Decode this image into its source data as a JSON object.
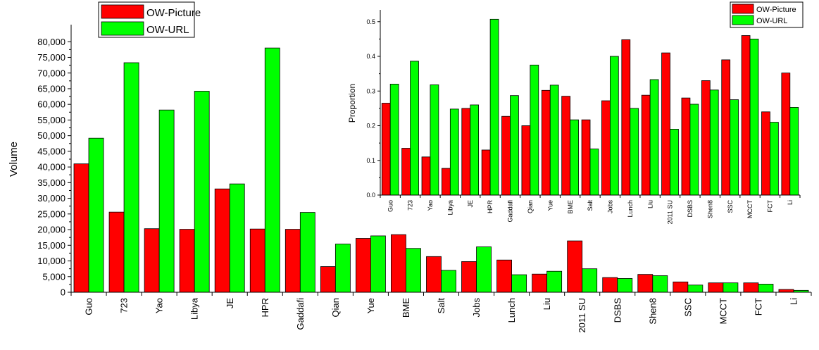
{
  "colors": {
    "picture": "#ff0000",
    "url": "#00ff00",
    "axis": "#000000"
  },
  "chart_data": [
    {
      "type": "bar",
      "title": "",
      "xlabel": "",
      "ylabel": "Volume",
      "ylim": [
        0,
        85000
      ],
      "yticks": [
        0,
        5000,
        10000,
        15000,
        20000,
        25000,
        30000,
        35000,
        40000,
        45000,
        50000,
        55000,
        60000,
        65000,
        70000,
        75000,
        80000
      ],
      "ytick_labels": [
        "0",
        "5,000",
        "10,000",
        "15,000",
        "20,000",
        "25,000",
        "30,000",
        "35,000",
        "40,000",
        "45,000",
        "50,000",
        "55,000",
        "60,000",
        "65,000",
        "70,000",
        "75,000",
        "80,000"
      ],
      "legend_position": "top-left",
      "grid": false,
      "categories": [
        "Guo",
        "723",
        "Yao",
        "Libya",
        "JE",
        "HPR",
        "Gaddafi",
        "Qian",
        "Yue",
        "BME",
        "Salt",
        "Jobs",
        "Lunch",
        "Liu",
        "2011 SU",
        "DSBS",
        "Shen8",
        "SSC",
        "MCCT",
        "FCT",
        "Li"
      ],
      "series": [
        {
          "name": "OW-Picture",
          "values": [
            41000,
            25600,
            20300,
            20100,
            33000,
            20200,
            20100,
            8200,
            17200,
            18400,
            11400,
            9800,
            10300,
            5800,
            16400,
            4700,
            5700,
            3300,
            3000,
            3000,
            900
          ]
        },
        {
          "name": "OW-URL",
          "values": [
            49200,
            73300,
            58200,
            64200,
            34600,
            78000,
            25500,
            15400,
            18000,
            14000,
            7000,
            14500,
            5600,
            6700,
            7500,
            4400,
            5300,
            2300,
            3000,
            2600,
            600
          ]
        }
      ]
    },
    {
      "type": "bar",
      "title": "",
      "xlabel": "",
      "ylabel": "Proportion",
      "ylim": [
        0,
        0.53
      ],
      "yticks": [
        0,
        0.1,
        0.2,
        0.3,
        0.4,
        0.5
      ],
      "ytick_labels": [
        "0.0",
        "0.1",
        "0.2",
        "0.3",
        "0.4",
        "0.5"
      ],
      "legend_position": "top-right",
      "grid": false,
      "categories": [
        "Guo",
        "723",
        "Yao",
        "Libya",
        "JE",
        "HPR",
        "Gaddafi",
        "Qian",
        "Yue",
        "BME",
        "Salt",
        "Jobs",
        "Lunch",
        "Liu",
        "2011 SU",
        "DSBS",
        "Shen8",
        "SSC",
        "MCCT",
        "FCT",
        "Li"
      ],
      "series": [
        {
          "name": "OW-Picture",
          "values": [
            0.265,
            0.135,
            0.11,
            0.077,
            0.25,
            0.13,
            0.227,
            0.2,
            0.302,
            0.285,
            0.217,
            0.272,
            0.448,
            0.288,
            0.41,
            0.28,
            0.33,
            0.39,
            0.46,
            0.24,
            0.352
          ]
        },
        {
          "name": "OW-URL",
          "values": [
            0.32,
            0.386,
            0.318,
            0.248,
            0.26,
            0.507,
            0.287,
            0.375,
            0.317,
            0.217,
            0.133,
            0.4,
            0.25,
            0.333,
            0.19,
            0.262,
            0.303,
            0.275,
            0.45,
            0.21,
            0.253
          ]
        }
      ]
    }
  ]
}
